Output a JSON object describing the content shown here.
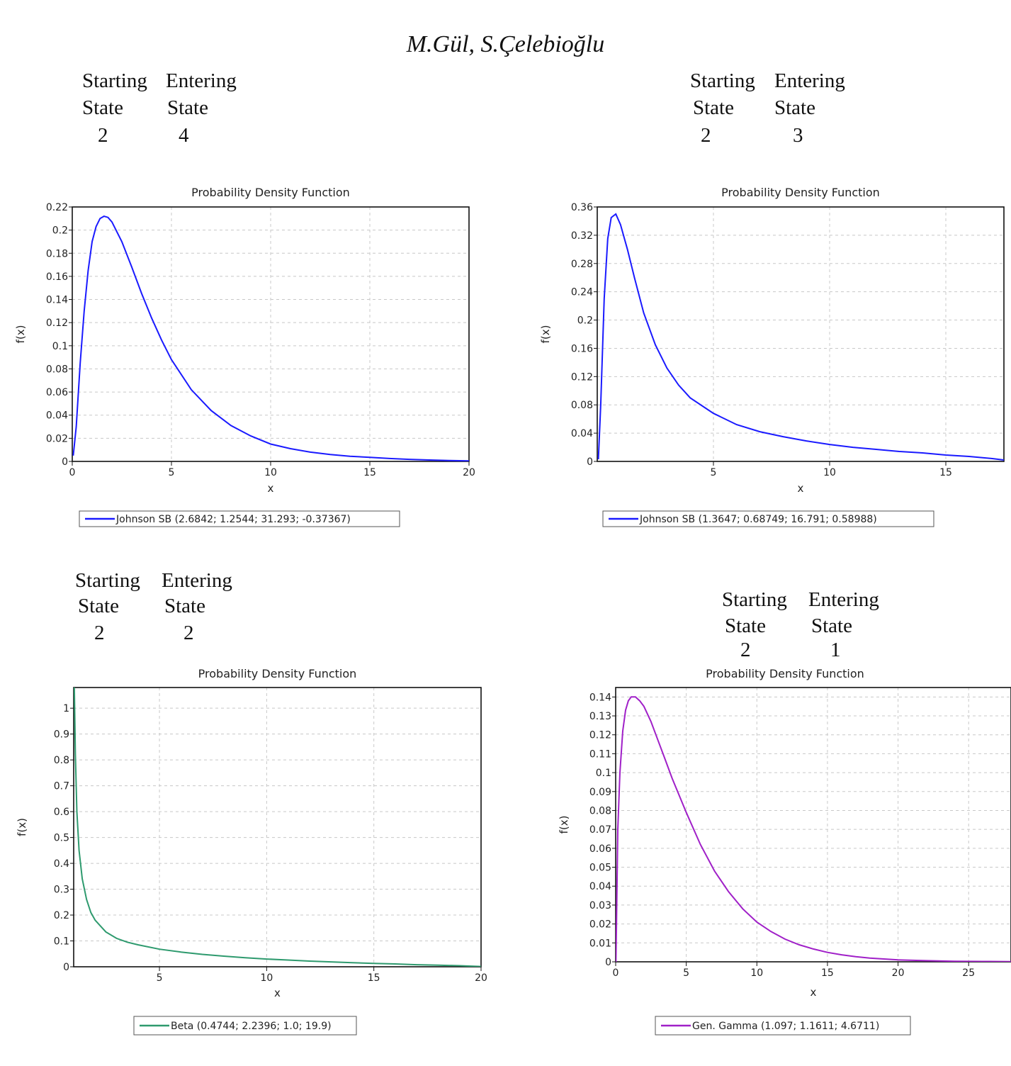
{
  "header": "M.Gül, S.Çelebioğlu",
  "state_headers": {
    "starting_line1": "Starting",
    "starting_line2": "State",
    "entering_line1": "Entering",
    "entering_line2": "State"
  },
  "panels": [
    {
      "starting_state": "2",
      "entering_state": "4"
    },
    {
      "starting_state": "2",
      "entering_state": "3"
    },
    {
      "starting_state": "2",
      "entering_state": "2"
    },
    {
      "starting_state": "2",
      "entering_state": "1"
    }
  ],
  "colors": {
    "blue": "#1a1aff",
    "green": "#2e9a6e",
    "purple": "#a020c8",
    "grid": "#c8c8c8"
  },
  "chart_data": [
    {
      "type": "line",
      "title": "Probability Density Function",
      "xlabel": "x",
      "ylabel": "f(x)",
      "xlim": [
        0,
        20
      ],
      "ylim": [
        0,
        0.22
      ],
      "xticks": [
        0,
        5,
        10,
        15,
        20
      ],
      "yticks": [
        0,
        0.02,
        0.04,
        0.06,
        0.08,
        0.1,
        0.12,
        0.14,
        0.16,
        0.18,
        0.2,
        0.22
      ],
      "series": [
        {
          "name": "Johnson SB  (2.6842; 1.2544; 31.293; -0.37367)",
          "color": "#1a1aff",
          "x": [
            0.05,
            0.2,
            0.4,
            0.6,
            0.8,
            1.0,
            1.2,
            1.4,
            1.6,
            1.8,
            2.0,
            2.5,
            3.0,
            3.5,
            4.0,
            4.5,
            5.0,
            6.0,
            7.0,
            8.0,
            9.0,
            10.0,
            11.0,
            12.0,
            13.0,
            14.0,
            15.0,
            16.0,
            17.0,
            18.0,
            19.0,
            20.0
          ],
          "y": [
            0.005,
            0.03,
            0.085,
            0.13,
            0.165,
            0.19,
            0.203,
            0.21,
            0.212,
            0.211,
            0.207,
            0.19,
            0.168,
            0.145,
            0.124,
            0.105,
            0.088,
            0.062,
            0.044,
            0.031,
            0.022,
            0.015,
            0.011,
            0.008,
            0.006,
            0.0045,
            0.0035,
            0.0025,
            0.0018,
            0.0012,
            0.0008,
            0.0005
          ]
        }
      ]
    },
    {
      "type": "line",
      "title": "Probability Density Function",
      "xlabel": "x",
      "ylabel": "f(x)",
      "xlim": [
        0,
        17.5
      ],
      "ylim": [
        0,
        0.36
      ],
      "xticks": [
        5,
        10,
        15
      ],
      "yticks": [
        0,
        0.04,
        0.08,
        0.12,
        0.16,
        0.2,
        0.24,
        0.28,
        0.32,
        0.36
      ],
      "series": [
        {
          "name": "Johnson SB  (1.3647; 0.68749; 16.791; 0.58988)",
          "color": "#1a1aff",
          "x": [
            0.05,
            0.15,
            0.3,
            0.45,
            0.6,
            0.8,
            1.0,
            1.3,
            1.6,
            2.0,
            2.5,
            3.0,
            3.5,
            4.0,
            5.0,
            6.0,
            7.0,
            8.0,
            9.0,
            10.0,
            11.0,
            12.0,
            13.0,
            14.0,
            15.0,
            16.0,
            17.0,
            17.5
          ],
          "y": [
            0.003,
            0.08,
            0.23,
            0.315,
            0.345,
            0.35,
            0.335,
            0.3,
            0.26,
            0.21,
            0.165,
            0.132,
            0.108,
            0.09,
            0.068,
            0.052,
            0.042,
            0.035,
            0.029,
            0.024,
            0.02,
            0.017,
            0.014,
            0.012,
            0.009,
            0.007,
            0.004,
            0.002
          ]
        }
      ]
    },
    {
      "type": "line",
      "title": "Probability Density Function",
      "xlabel": "x",
      "ylabel": "f(x)",
      "xlim": [
        1,
        20
      ],
      "ylim": [
        0,
        1.08
      ],
      "xticks": [
        5,
        10,
        15,
        20
      ],
      "yticks": [
        0,
        0.1,
        0.2,
        0.3,
        0.4,
        0.5,
        0.6,
        0.7,
        0.8,
        0.9,
        1
      ],
      "series": [
        {
          "name": "Beta  (0.4744; 2.2396; 1.0; 19.9)",
          "color": "#2e9a6e",
          "x": [
            1.03,
            1.08,
            1.15,
            1.25,
            1.4,
            1.6,
            1.8,
            2.0,
            2.5,
            3.0,
            3.5,
            4.0,
            5.0,
            6.0,
            7.0,
            8.0,
            9.0,
            10.0,
            11.0,
            12.0,
            13.0,
            14.0,
            15.0,
            16.0,
            17.0,
            18.0,
            19.0,
            20.0
          ],
          "y": [
            1.08,
            0.82,
            0.6,
            0.45,
            0.34,
            0.26,
            0.21,
            0.18,
            0.135,
            0.11,
            0.095,
            0.085,
            0.068,
            0.057,
            0.048,
            0.041,
            0.035,
            0.03,
            0.026,
            0.022,
            0.019,
            0.016,
            0.013,
            0.011,
            0.008,
            0.006,
            0.004,
            0.001
          ]
        }
      ]
    },
    {
      "type": "line",
      "title": "Probability Density Function",
      "xlabel": "x",
      "ylabel": "f(x)",
      "xlim": [
        0,
        28
      ],
      "ylim": [
        0,
        0.145
      ],
      "xticks": [
        0,
        5,
        10,
        15,
        20,
        25
      ],
      "yticks": [
        0,
        0.01,
        0.02,
        0.03,
        0.04,
        0.05,
        0.06,
        0.07,
        0.08,
        0.09,
        0.1,
        0.11,
        0.12,
        0.13,
        0.14
      ],
      "series": [
        {
          "name": "Gen. Gamma  (1.097; 1.1611; 4.6711)",
          "color": "#a020c8",
          "x": [
            0.02,
            0.15,
            0.3,
            0.5,
            0.7,
            0.9,
            1.1,
            1.4,
            1.7,
            2.0,
            2.5,
            3.0,
            3.5,
            4.0,
            5.0,
            6.0,
            7.0,
            8.0,
            9.0,
            10.0,
            11.0,
            12.0,
            13.0,
            14.0,
            15.0,
            16.0,
            17.0,
            18.0,
            19.0,
            20.0,
            22.0,
            24.0,
            26.0,
            28.0
          ],
          "y": [
            0.0,
            0.07,
            0.1,
            0.122,
            0.133,
            0.138,
            0.14,
            0.14,
            0.138,
            0.135,
            0.127,
            0.117,
            0.107,
            0.097,
            0.079,
            0.062,
            0.048,
            0.037,
            0.028,
            0.021,
            0.016,
            0.012,
            0.009,
            0.0068,
            0.005,
            0.0037,
            0.0027,
            0.002,
            0.0015,
            0.001,
            0.0006,
            0.0003,
            0.0002,
            0.0001
          ]
        }
      ]
    }
  ]
}
